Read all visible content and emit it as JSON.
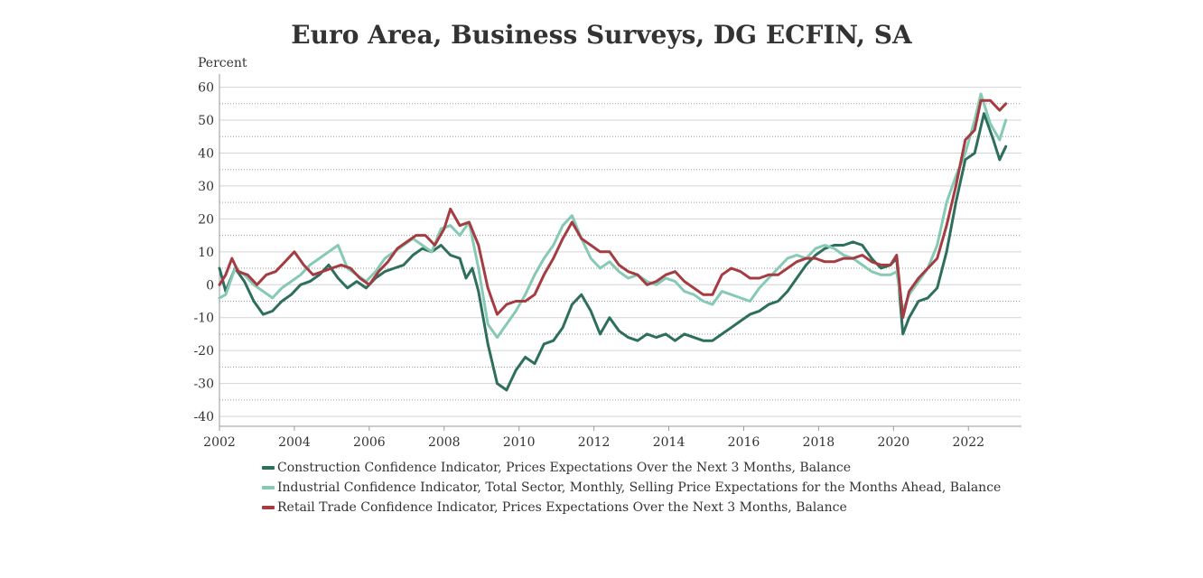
{
  "chart_data": {
    "type": "line",
    "title": "Euro Area, Business Surveys, DG ECFIN, SA",
    "ylabel": "Percent",
    "xlabel": "",
    "x_start": "2002-01",
    "x_end": "2023-06",
    "ylim": [
      -43,
      64
    ],
    "y_ticks": [
      "60",
      "50",
      "40",
      "30",
      "20",
      "10",
      "0",
      "-10",
      "-20",
      "-30",
      "-40"
    ],
    "x_ticks": [
      "2002",
      "2004",
      "2006",
      "2008",
      "2010",
      "2012",
      "2014",
      "2016",
      "2018",
      "2020",
      "2022"
    ],
    "grid": true,
    "legend_placement": "bottom",
    "series": [
      {
        "name": "Construction Confidence Indicator, Prices Expectations Over the Next 3 Months, Balance",
        "color": "#2e6e5c",
        "points": [
          [
            "2002-01",
            5
          ],
          [
            "2002-03",
            -2
          ],
          [
            "2002-06",
            5
          ],
          [
            "2002-09",
            1
          ],
          [
            "2002-12",
            -5
          ],
          [
            "2003-03",
            -9
          ],
          [
            "2003-06",
            -8
          ],
          [
            "2003-09",
            -5
          ],
          [
            "2003-12",
            -3
          ],
          [
            "2004-03",
            0
          ],
          [
            "2004-06",
            1
          ],
          [
            "2004-09",
            3
          ],
          [
            "2004-12",
            6
          ],
          [
            "2005-03",
            2
          ],
          [
            "2005-06",
            -1
          ],
          [
            "2005-09",
            1
          ],
          [
            "2005-12",
            -1
          ],
          [
            "2006-03",
            2
          ],
          [
            "2006-06",
            4
          ],
          [
            "2006-09",
            5
          ],
          [
            "2006-12",
            6
          ],
          [
            "2007-03",
            9
          ],
          [
            "2007-06",
            11
          ],
          [
            "2007-09",
            10
          ],
          [
            "2007-12",
            12
          ],
          [
            "2008-03",
            9
          ],
          [
            "2008-06",
            8
          ],
          [
            "2008-08",
            2
          ],
          [
            "2008-10",
            5
          ],
          [
            "2008-12",
            -2
          ],
          [
            "2009-03",
            -18
          ],
          [
            "2009-06",
            -30
          ],
          [
            "2009-09",
            -32
          ],
          [
            "2009-12",
            -26
          ],
          [
            "2010-03",
            -22
          ],
          [
            "2010-06",
            -24
          ],
          [
            "2010-09",
            -18
          ],
          [
            "2010-12",
            -17
          ],
          [
            "2011-03",
            -13
          ],
          [
            "2011-06",
            -6
          ],
          [
            "2011-09",
            -3
          ],
          [
            "2011-12",
            -8
          ],
          [
            "2012-03",
            -15
          ],
          [
            "2012-06",
            -10
          ],
          [
            "2012-09",
            -14
          ],
          [
            "2012-12",
            -16
          ],
          [
            "2013-03",
            -17
          ],
          [
            "2013-06",
            -15
          ],
          [
            "2013-09",
            -16
          ],
          [
            "2013-12",
            -15
          ],
          [
            "2014-03",
            -17
          ],
          [
            "2014-06",
            -15
          ],
          [
            "2014-09",
            -16
          ],
          [
            "2014-12",
            -17
          ],
          [
            "2015-03",
            -17
          ],
          [
            "2015-06",
            -15
          ],
          [
            "2015-09",
            -13
          ],
          [
            "2015-12",
            -11
          ],
          [
            "2016-03",
            -9
          ],
          [
            "2016-06",
            -8
          ],
          [
            "2016-09",
            -6
          ],
          [
            "2016-12",
            -5
          ],
          [
            "2017-03",
            -2
          ],
          [
            "2017-06",
            2
          ],
          [
            "2017-09",
            6
          ],
          [
            "2017-12",
            9
          ],
          [
            "2018-03",
            11
          ],
          [
            "2018-06",
            12
          ],
          [
            "2018-09",
            12
          ],
          [
            "2018-12",
            13
          ],
          [
            "2019-03",
            12
          ],
          [
            "2019-06",
            8
          ],
          [
            "2019-09",
            5
          ],
          [
            "2019-12",
            6
          ],
          [
            "2020-02",
            8
          ],
          [
            "2020-04",
            -15
          ],
          [
            "2020-06",
            -10
          ],
          [
            "2020-09",
            -5
          ],
          [
            "2020-12",
            -4
          ],
          [
            "2021-03",
            -1
          ],
          [
            "2021-06",
            10
          ],
          [
            "2021-09",
            25
          ],
          [
            "2021-12",
            38
          ],
          [
            "2022-03",
            40
          ],
          [
            "2022-06",
            52
          ],
          [
            "2022-09",
            44
          ],
          [
            "2022-11",
            38
          ],
          [
            "2023-01",
            42
          ]
        ]
      },
      {
        "name": "Industrial Confidence Indicator, Total Sector, Monthly, Selling Price Expectations for the Months Ahead, Balance",
        "color": "#86c9b4",
        "points": [
          [
            "2002-01",
            -4
          ],
          [
            "2002-03",
            -3
          ],
          [
            "2002-06",
            5
          ],
          [
            "2002-09",
            3
          ],
          [
            "2002-12",
            0
          ],
          [
            "2003-03",
            -2
          ],
          [
            "2003-06",
            -4
          ],
          [
            "2003-09",
            -1
          ],
          [
            "2003-12",
            1
          ],
          [
            "2004-03",
            3
          ],
          [
            "2004-06",
            6
          ],
          [
            "2004-09",
            8
          ],
          [
            "2004-12",
            10
          ],
          [
            "2005-03",
            12
          ],
          [
            "2005-06",
            5
          ],
          [
            "2005-09",
            3
          ],
          [
            "2005-12",
            1
          ],
          [
            "2006-03",
            4
          ],
          [
            "2006-06",
            8
          ],
          [
            "2006-09",
            10
          ],
          [
            "2006-12",
            12
          ],
          [
            "2007-03",
            14
          ],
          [
            "2007-06",
            12
          ],
          [
            "2007-09",
            10
          ],
          [
            "2007-12",
            17
          ],
          [
            "2008-03",
            18
          ],
          [
            "2008-06",
            15
          ],
          [
            "2008-09",
            19
          ],
          [
            "2008-12",
            5
          ],
          [
            "2009-03",
            -12
          ],
          [
            "2009-06",
            -16
          ],
          [
            "2009-09",
            -12
          ],
          [
            "2009-12",
            -8
          ],
          [
            "2010-03",
            -3
          ],
          [
            "2010-06",
            3
          ],
          [
            "2010-09",
            8
          ],
          [
            "2010-12",
            12
          ],
          [
            "2011-03",
            18
          ],
          [
            "2011-06",
            21
          ],
          [
            "2011-09",
            14
          ],
          [
            "2011-12",
            8
          ],
          [
            "2012-03",
            5
          ],
          [
            "2012-06",
            7
          ],
          [
            "2012-09",
            4
          ],
          [
            "2012-12",
            2
          ],
          [
            "2013-03",
            3
          ],
          [
            "2013-06",
            1
          ],
          [
            "2013-09",
            0
          ],
          [
            "2013-12",
            2
          ],
          [
            "2014-03",
            1
          ],
          [
            "2014-06",
            -2
          ],
          [
            "2014-09",
            -3
          ],
          [
            "2014-12",
            -5
          ],
          [
            "2015-03",
            -6
          ],
          [
            "2015-06",
            -2
          ],
          [
            "2015-09",
            -3
          ],
          [
            "2015-12",
            -4
          ],
          [
            "2016-03",
            -5
          ],
          [
            "2016-06",
            -1
          ],
          [
            "2016-09",
            2
          ],
          [
            "2016-12",
            5
          ],
          [
            "2017-03",
            8
          ],
          [
            "2017-06",
            9
          ],
          [
            "2017-09",
            8
          ],
          [
            "2017-12",
            11
          ],
          [
            "2018-03",
            12
          ],
          [
            "2018-06",
            11
          ],
          [
            "2018-09",
            9
          ],
          [
            "2018-12",
            8
          ],
          [
            "2019-03",
            6
          ],
          [
            "2019-06",
            4
          ],
          [
            "2019-09",
            3
          ],
          [
            "2019-12",
            3
          ],
          [
            "2020-02",
            4
          ],
          [
            "2020-04",
            -8
          ],
          [
            "2020-06",
            -3
          ],
          [
            "2020-09",
            1
          ],
          [
            "2020-12",
            5
          ],
          [
            "2021-03",
            12
          ],
          [
            "2021-06",
            25
          ],
          [
            "2021-09",
            33
          ],
          [
            "2021-12",
            40
          ],
          [
            "2022-03",
            50
          ],
          [
            "2022-05",
            58
          ],
          [
            "2022-08",
            49
          ],
          [
            "2022-11",
            44
          ],
          [
            "2023-01",
            50
          ]
        ]
      },
      {
        "name": "Retail Trade Confidence Indicator, Prices Expectations Over the Next 3 Months, Balance",
        "color": "#a43c42",
        "points": [
          [
            "2002-01",
            0
          ],
          [
            "2002-03",
            3
          ],
          [
            "2002-05",
            8
          ],
          [
            "2002-07",
            4
          ],
          [
            "2002-10",
            3
          ],
          [
            "2003-01",
            0
          ],
          [
            "2003-04",
            3
          ],
          [
            "2003-07",
            4
          ],
          [
            "2003-10",
            7
          ],
          [
            "2004-01",
            10
          ],
          [
            "2004-04",
            6
          ],
          [
            "2004-07",
            3
          ],
          [
            "2004-10",
            4
          ],
          [
            "2005-01",
            5
          ],
          [
            "2005-04",
            6
          ],
          [
            "2005-07",
            5
          ],
          [
            "2005-10",
            2
          ],
          [
            "2006-01",
            0
          ],
          [
            "2006-04",
            4
          ],
          [
            "2006-07",
            7
          ],
          [
            "2006-10",
            11
          ],
          [
            "2007-01",
            13
          ],
          [
            "2007-04",
            15
          ],
          [
            "2007-07",
            15
          ],
          [
            "2007-10",
            12
          ],
          [
            "2008-01",
            17
          ],
          [
            "2008-03",
            23
          ],
          [
            "2008-06",
            18
          ],
          [
            "2008-09",
            19
          ],
          [
            "2008-12",
            12
          ],
          [
            "2009-03",
            -1
          ],
          [
            "2009-06",
            -9
          ],
          [
            "2009-09",
            -6
          ],
          [
            "2009-12",
            -5
          ],
          [
            "2010-03",
            -5
          ],
          [
            "2010-06",
            -3
          ],
          [
            "2010-09",
            3
          ],
          [
            "2010-12",
            8
          ],
          [
            "2011-03",
            14
          ],
          [
            "2011-06",
            19
          ],
          [
            "2011-09",
            14
          ],
          [
            "2011-12",
            12
          ],
          [
            "2012-03",
            10
          ],
          [
            "2012-06",
            10
          ],
          [
            "2012-09",
            6
          ],
          [
            "2012-12",
            4
          ],
          [
            "2013-03",
            3
          ],
          [
            "2013-06",
            0
          ],
          [
            "2013-09",
            1
          ],
          [
            "2013-12",
            3
          ],
          [
            "2014-03",
            4
          ],
          [
            "2014-06",
            1
          ],
          [
            "2014-09",
            -1
          ],
          [
            "2014-12",
            -3
          ],
          [
            "2015-03",
            -3
          ],
          [
            "2015-06",
            3
          ],
          [
            "2015-09",
            5
          ],
          [
            "2015-12",
            4
          ],
          [
            "2016-03",
            2
          ],
          [
            "2016-06",
            2
          ],
          [
            "2016-09",
            3
          ],
          [
            "2016-12",
            3
          ],
          [
            "2017-03",
            5
          ],
          [
            "2017-06",
            7
          ],
          [
            "2017-09",
            8
          ],
          [
            "2017-12",
            8
          ],
          [
            "2018-03",
            7
          ],
          [
            "2018-06",
            7
          ],
          [
            "2018-09",
            8
          ],
          [
            "2018-12",
            8
          ],
          [
            "2019-03",
            9
          ],
          [
            "2019-06",
            7
          ],
          [
            "2019-09",
            6
          ],
          [
            "2019-12",
            6
          ],
          [
            "2020-02",
            9
          ],
          [
            "2020-04",
            -10
          ],
          [
            "2020-06",
            -2
          ],
          [
            "2020-09",
            2
          ],
          [
            "2020-12",
            5
          ],
          [
            "2021-03",
            8
          ],
          [
            "2021-06",
            18
          ],
          [
            "2021-09",
            30
          ],
          [
            "2021-12",
            44
          ],
          [
            "2022-03",
            47
          ],
          [
            "2022-05",
            56
          ],
          [
            "2022-08",
            56
          ],
          [
            "2022-11",
            53
          ],
          [
            "2023-01",
            55
          ]
        ]
      }
    ]
  }
}
